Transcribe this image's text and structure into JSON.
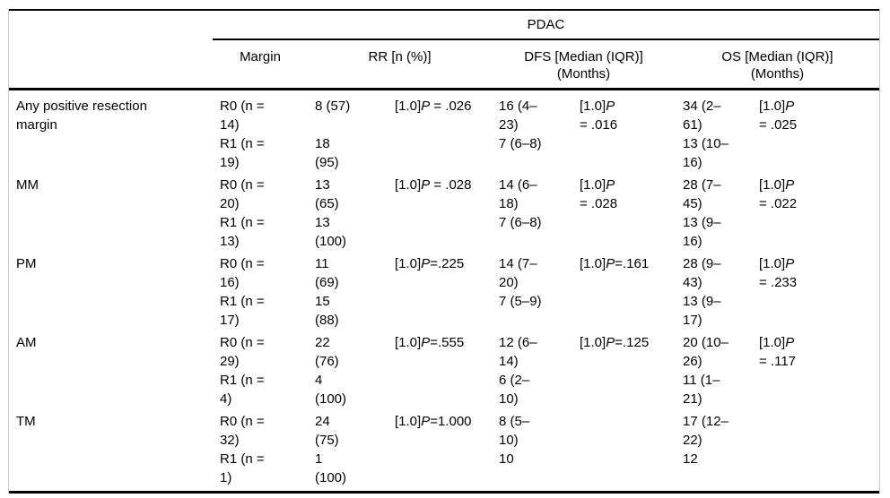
{
  "colors": {
    "background": "#ffffff",
    "text": "#000000",
    "rule": "#000000",
    "frame_border": "#c9c9c9"
  },
  "header": {
    "group_label": "PDAC",
    "columns": {
      "margin": {
        "label": "Margin",
        "sub": ""
      },
      "rr": {
        "label": "RR [n (%)]",
        "sub": ""
      },
      "dfs": {
        "label": "DFS [Median (IQR)]",
        "sub": "(Months)"
      },
      "os": {
        "label": "OS [Median (IQR)]",
        "sub": "(Months)"
      }
    }
  },
  "rows": [
    {
      "label_lines": [
        "Any positive resection",
        "margin"
      ],
      "subrows": [
        {
          "margin": [
            "R0 (n =",
            "14)"
          ],
          "rr": [
            "8 (57)"
          ],
          "rr_p": [
            "[1.0]P = .026"
          ],
          "dfs": [
            "16 (4–",
            "23)"
          ],
          "dfs_p": [
            "[1.0]P",
            "= .016"
          ],
          "os": [
            "34 (2–",
            "61)"
          ],
          "os_p": [
            "[1.0]P",
            "= .025"
          ]
        },
        {
          "margin": [
            "R1 (n =",
            "19)"
          ],
          "rr": [
            "18",
            "(95)"
          ],
          "rr_p": [],
          "dfs": [
            "7 (6–8)"
          ],
          "dfs_p": [],
          "os": [
            "13 (10–",
            "16)"
          ],
          "os_p": []
        }
      ]
    },
    {
      "label_lines": [
        "MM"
      ],
      "subrows": [
        {
          "margin": [
            "R0 (n =",
            "20)"
          ],
          "rr": [
            "13",
            "(65)"
          ],
          "rr_p": [
            "[1.0]P = .028"
          ],
          "dfs": [
            "14 (6–",
            "18)"
          ],
          "dfs_p": [
            "[1.0]P",
            "= .028"
          ],
          "os": [
            "28 (7–",
            "45)"
          ],
          "os_p": [
            "[1.0]P",
            "= .022"
          ]
        },
        {
          "margin": [
            "R1 (n =",
            "13)"
          ],
          "rr": [
            "13",
            "(100)"
          ],
          "rr_p": [],
          "dfs": [
            "7 (6–8)"
          ],
          "dfs_p": [],
          "os": [
            "13 (9–",
            "16)"
          ],
          "os_p": []
        }
      ]
    },
    {
      "label_lines": [
        "PM"
      ],
      "subrows": [
        {
          "margin": [
            "R0 (n =",
            "16)"
          ],
          "rr": [
            "11",
            "(69)"
          ],
          "rr_p": [
            "[1.0]P=.225"
          ],
          "dfs": [
            "14 (7–",
            "20)"
          ],
          "dfs_p": [
            "[1.0]P=.161"
          ],
          "os": [
            "28 (9–",
            "43)"
          ],
          "os_p": [
            "[1.0]P",
            "= .233"
          ]
        },
        {
          "margin": [
            "R1 (n =",
            "17)"
          ],
          "rr": [
            "15",
            "(88)"
          ],
          "rr_p": [],
          "dfs": [
            "7 (5–9)"
          ],
          "dfs_p": [],
          "os": [
            "13 (9–",
            "17)"
          ],
          "os_p": []
        }
      ]
    },
    {
      "label_lines": [
        "AM"
      ],
      "subrows": [
        {
          "margin": [
            "R0 (n =",
            "29)"
          ],
          "rr": [
            "22",
            "(76)"
          ],
          "rr_p": [
            "[1.0]P=.555"
          ],
          "dfs": [
            "12 (6–",
            "14)"
          ],
          "dfs_p": [
            "[1.0]P=.125"
          ],
          "os": [
            "20 (10–",
            "26)"
          ],
          "os_p": [
            "[1.0]P",
            "= .117"
          ]
        },
        {
          "margin": [
            "R1 (n =",
            "4)"
          ],
          "rr": [
            "4",
            "(100)"
          ],
          "rr_p": [],
          "dfs": [
            "6 (2–",
            "10)"
          ],
          "dfs_p": [],
          "os": [
            "11 (1–",
            "21)"
          ],
          "os_p": []
        }
      ]
    },
    {
      "label_lines": [
        "TM"
      ],
      "subrows": [
        {
          "margin": [
            "R0 (n =",
            "32)"
          ],
          "rr": [
            "24",
            "(75)"
          ],
          "rr_p": [
            "[1.0]P=1.000"
          ],
          "dfs": [
            "8 (5–",
            "10)"
          ],
          "dfs_p": [],
          "os": [
            "17 (12–",
            "22)"
          ],
          "os_p": []
        },
        {
          "margin": [
            "R1 (n =",
            "1)"
          ],
          "rr": [
            "1",
            "(100)"
          ],
          "rr_p": [],
          "dfs": [
            "10"
          ],
          "dfs_p": [],
          "os": [
            "12"
          ],
          "os_p": []
        }
      ]
    }
  ]
}
